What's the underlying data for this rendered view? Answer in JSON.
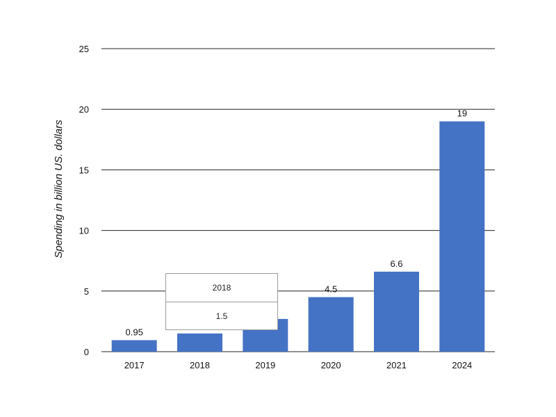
{
  "colors": {
    "bar": "#4472c4",
    "grid": "#222222",
    "text": "#111111"
  },
  "chart_data": {
    "type": "bar",
    "categories": [
      "2017",
      "2018",
      "2019",
      "2020",
      "2021",
      "2024"
    ],
    "values": [
      0.95,
      1.5,
      2.7,
      4.5,
      6.6,
      19
    ],
    "data_labels": [
      "0.95",
      "",
      "",
      "4.5",
      "6.6",
      "19"
    ],
    "ylabel": "Spending in billion US. dollars",
    "xlabel": "",
    "ylim": [
      0,
      25
    ],
    "yticks": [
      0,
      5,
      10,
      15,
      20,
      25
    ],
    "grid": true,
    "legend": "none"
  },
  "tooltip": {
    "category": "2018",
    "value": "1.5"
  }
}
